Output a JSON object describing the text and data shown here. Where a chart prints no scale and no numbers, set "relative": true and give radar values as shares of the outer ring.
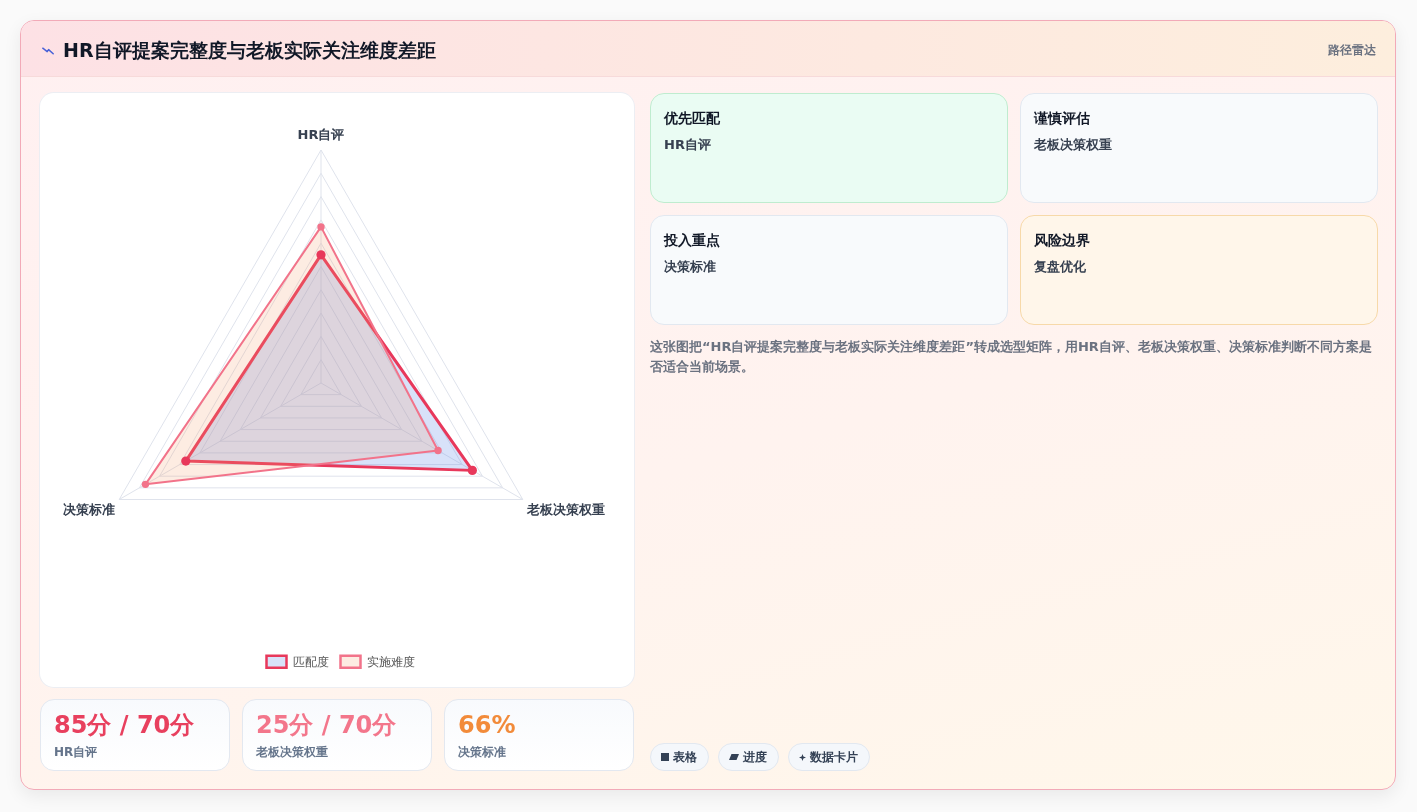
{
  "chart_data": [
    {
      "type": "other",
      "title": "HR自评提案完整度与老板实际关注维度差距",
      "subtitle": "路径雷达"
    },
    {
      "type": "radar",
      "categories": [
        "HR自评",
        "老板决策权重",
        "决策标准"
      ],
      "relative": true,
      "series": [
        {
          "name": "匹配度",
          "color": "#e8385b",
          "values": [
            0.55,
            0.75,
            0.67
          ]
        },
        {
          "name": "实施难度",
          "color": "#f2738a",
          "values": [
            0.67,
            0.58,
            0.87
          ]
        }
      ],
      "grid": true,
      "legend": "bottom",
      "marker": "circle"
    },
    {
      "type": "other",
      "annotations": [
        "优先匹配",
        "HR自评",
        "谨慎评估",
        "老板决策权重",
        "投入重点",
        "决策标准",
        "风险边界",
        "复盘优化",
        "这张图把“HR自评提案完整度与老板实际关注维度差距”转成选型矩阵，用HR自评、老板决策权重、决策标准判断不同方案是否适合当前场景。"
      ]
    },
    {
      "type": "other",
      "annotations": [
        "85分 / 70分",
        "HR自评",
        "25分 / 70分",
        "老板决策权重",
        "66%",
        "决策标准"
      ],
      "colors": [
        "#e8405e",
        "#f3768b",
        "#f28b3a"
      ]
    },
    {
      "type": "other",
      "annotations": [
        "表格",
        "进度",
        "数据卡片"
      ]
    }
  ]
}
